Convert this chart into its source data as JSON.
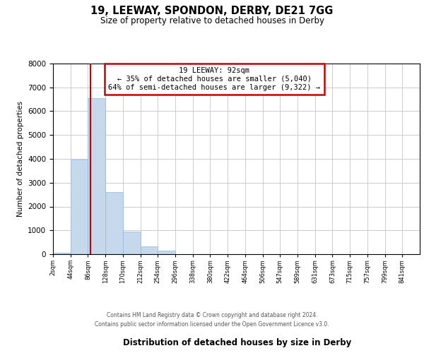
{
  "title": "19, LEEWAY, SPONDON, DERBY, DE21 7GG",
  "subtitle": "Size of property relative to detached houses in Derby",
  "xlabel": "Distribution of detached houses by size in Derby",
  "ylabel": "Number of detached properties",
  "bin_labels": [
    "2sqm",
    "44sqm",
    "86sqm",
    "128sqm",
    "170sqm",
    "212sqm",
    "254sqm",
    "296sqm",
    "338sqm",
    "380sqm",
    "422sqm",
    "464sqm",
    "506sqm",
    "547sqm",
    "589sqm",
    "631sqm",
    "673sqm",
    "715sqm",
    "757sqm",
    "799sqm",
    "841sqm"
  ],
  "bar_values": [
    60,
    3980,
    6550,
    2600,
    960,
    330,
    140,
    0,
    0,
    0,
    0,
    0,
    0,
    0,
    0,
    0,
    0,
    0,
    0,
    0,
    0
  ],
  "bar_color": "#c5d8ec",
  "bar_edge_color": "#90b8d8",
  "annotation_title": "19 LEEWAY: 92sqm",
  "annotation_line1": "← 35% of detached houses are smaller (5,040)",
  "annotation_line2": "64% of semi-detached houses are larger (9,322) →",
  "annotation_box_facecolor": "#ffffff",
  "annotation_box_edgecolor": "#cc0000",
  "red_line_color": "#cc0000",
  "property_sqm": 92,
  "bin_start_sqm": [
    2,
    44,
    86,
    128,
    170,
    212,
    254,
    296,
    338,
    380,
    422,
    464,
    506,
    547,
    589,
    631,
    673,
    715,
    757,
    799,
    841
  ],
  "ylim": [
    0,
    8000
  ],
  "yticks": [
    0,
    1000,
    2000,
    3000,
    4000,
    5000,
    6000,
    7000,
    8000
  ],
  "grid_color": "#cccccc",
  "bg_color": "#ffffff",
  "footer_line1": "Contains HM Land Registry data © Crown copyright and database right 2024.",
  "footer_line2": "Contains public sector information licensed under the Open Government Licence v3.0."
}
